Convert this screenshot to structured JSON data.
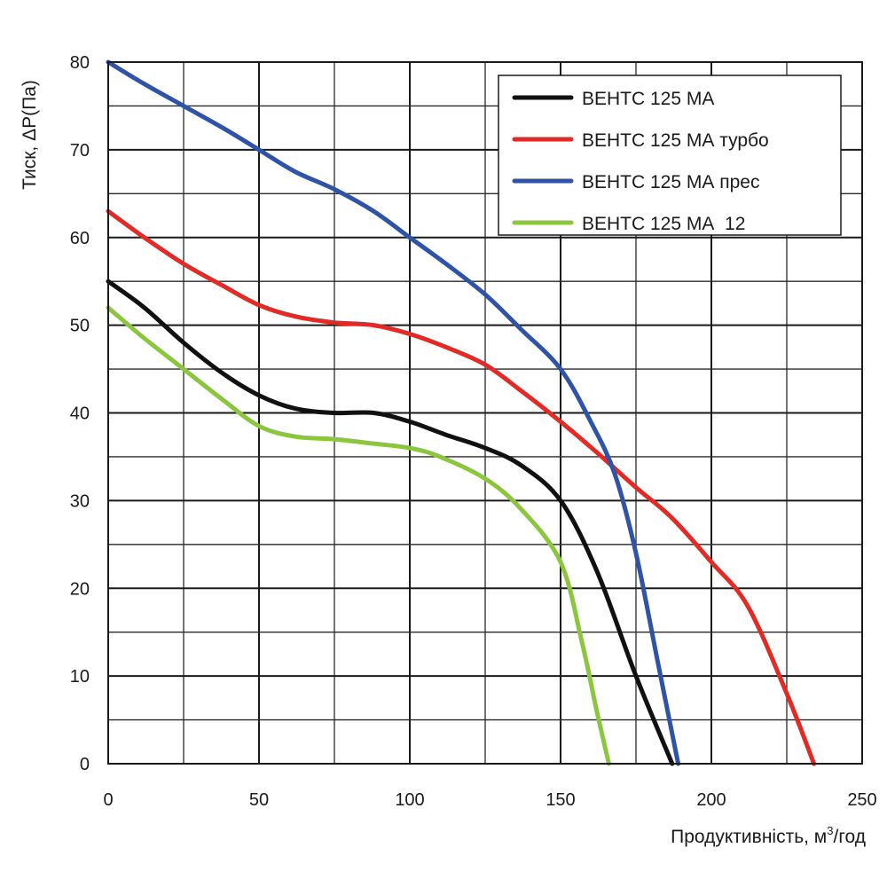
{
  "chart_data": {
    "type": "line",
    "title": "",
    "xlabel": "Продуктивність, м",
    "xlabel_sup": "3",
    "xlabel_suffix": "/год",
    "ylabel": "Тиск, ΔР(Па)",
    "xlim": [
      0,
      250
    ],
    "ylim": [
      0,
      80
    ],
    "x_ticks": [
      0,
      50,
      100,
      150,
      200,
      250
    ],
    "y_ticks": [
      0,
      10,
      20,
      30,
      40,
      50,
      60,
      70,
      80
    ],
    "grid": true,
    "legend_position": "top-right",
    "series": [
      {
        "name": "ВЕНТС 125 МА",
        "color": "#111111",
        "x": [
          0,
          12,
          25,
          38,
          50,
          62,
          75,
          88,
          100,
          112,
          125,
          137,
          150,
          162,
          175,
          187
        ],
        "y": [
          55,
          52,
          48,
          44.5,
          42,
          40.5,
          40,
          40,
          39,
          37.5,
          36,
          34,
          30,
          22,
          10,
          0
        ]
      },
      {
        "name": "ВЕНТС 125 МА турбо",
        "color": "#e02b26",
        "x": [
          0,
          12,
          25,
          38,
          50,
          62,
          75,
          88,
          100,
          112,
          125,
          137,
          150,
          162,
          175,
          187,
          200,
          212,
          225,
          234
        ],
        "y": [
          63,
          60,
          57,
          54.5,
          52.3,
          51,
          50.3,
          50,
          49,
          47.5,
          45.5,
          42.5,
          39,
          35.5,
          31.5,
          28,
          23,
          18,
          8,
          0
        ]
      },
      {
        "name": "ВЕНТС 125 МА прес",
        "color": "#2f53a5",
        "x": [
          0,
          12,
          25,
          38,
          50,
          62,
          75,
          88,
          100,
          112,
          125,
          137,
          150,
          160,
          168,
          175,
          182,
          189
        ],
        "y": [
          80,
          77.5,
          75,
          72.5,
          70,
          67.5,
          65.5,
          63,
          60,
          57,
          53.5,
          49.5,
          45,
          39,
          33,
          24,
          12,
          0
        ]
      },
      {
        "name": "ВЕНТС 125 МА  12",
        "color": "#8cc63f",
        "x": [
          0,
          12,
          25,
          38,
          50,
          62,
          75,
          88,
          100,
          110,
          125,
          137,
          150,
          157,
          162,
          166
        ],
        "y": [
          52,
          48.5,
          45,
          41.5,
          38.5,
          37.3,
          37,
          36.5,
          36,
          35,
          32.5,
          29,
          23,
          14,
          6,
          0
        ]
      }
    ]
  }
}
